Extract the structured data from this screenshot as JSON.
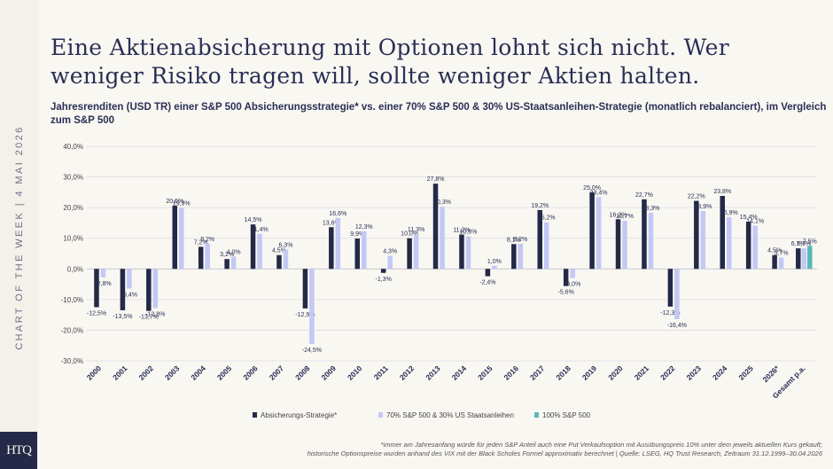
{
  "sidebar": {
    "label": "CHART OF THE WEEK | 4 MAI 2026",
    "logo_text": "HTQ"
  },
  "headline": "Eine Aktienabsicherung mit Optionen lohnt sich nicht. Wer weniger Risiko tragen will, sollte weniger Aktien halten.",
  "footnote": {
    "line1": "*immer am Jahresanfang würde für jeden S&P Anteil auch eine Put Verkaufsoption mit Ausübungspreis 10% unter dem jeweils aktuellen Kurs gekauft;",
    "line2": "historische Optionspreise wurden anhand des VIX mit der Black Scholes Formel approximativ berechnet | Quelle: LSEG, HQ Trust Research, Zeitraum 31.12.1999–30.04.2026"
  },
  "colors": {
    "hedge": "#232946",
    "mix": "#c3c8f5",
    "sp500": "#5ab8b7",
    "title": "#2a2f55"
  },
  "chart_data": {
    "type": "bar",
    "title": "Jahresrenditen (USD TR) einer S&P 500 Absicherungsstrategie* vs. einer 70% S&P 500 & 30% US-Staatsanleihen-Strategie (monatlich rebalanciert), im Vergleich zum S&P 500",
    "ylim": [
      -30,
      40
    ],
    "yticks": [
      "-30,0%",
      "-20,0%",
      "-10,0%",
      "0,0%",
      "10,0%",
      "20,0%",
      "30,0%",
      "40,0%"
    ],
    "ytick_values": [
      -30,
      -20,
      -10,
      0,
      10,
      20,
      30,
      40
    ],
    "grid": true,
    "legend_position": "bottom",
    "categories": [
      "2000",
      "2001",
      "2002",
      "2003",
      "2004",
      "2005",
      "2006",
      "2007",
      "2008",
      "2009",
      "2010",
      "2011",
      "2012",
      "2013",
      "2014",
      "2015",
      "2016",
      "2017",
      "2018",
      "2019",
      "2020",
      "2021",
      "2022",
      "2023",
      "2024",
      "2025",
      "2026*",
      "Gesamt p.a."
    ],
    "series": [
      {
        "name": "Absicherungs-Strategie*",
        "color": "#232946",
        "values": [
          -12.5,
          -13.5,
          -13.7,
          20.6,
          7.2,
          3.2,
          14.5,
          4.5,
          -12.9,
          13.6,
          9.9,
          -1.3,
          10.0,
          27.8,
          11.2,
          -2.4,
          8.1,
          19.2,
          -5.6,
          25.0,
          16.2,
          22.7,
          -12.3,
          22.2,
          23.8,
          15.4,
          4.5,
          6.7
        ],
        "labels": [
          "-12,5%",
          "-13,5%",
          "-13,7%",
          "20,6%",
          "7,2%",
          "3,2%",
          "14,5%",
          "4,5%",
          "-12,9%",
          "13,6%",
          "9,9%",
          "-1,3%",
          "10,0%",
          "27,8%",
          "11,2%",
          "-2,4%",
          "8,1%",
          "19,2%",
          "-5,6%",
          "25,0%",
          "16,2%",
          "22,7%",
          "-12,3%",
          "22,2%",
          "23,8%",
          "15,4%",
          "4,5%",
          "6,7%"
        ]
      },
      {
        "name": "70% S&P 500 & 30% US Staatsanleihen",
        "color": "#c3c8f5",
        "values": [
          -2.8,
          -6.4,
          -12.8,
          19.9,
          8.2,
          4.0,
          11.4,
          6.3,
          -24.5,
          16.6,
          12.3,
          4.3,
          11.3,
          20.3,
          10.6,
          1.0,
          8.2,
          15.2,
          -3.0,
          23.4,
          15.7,
          18.3,
          -16.4,
          18.9,
          16.9,
          14.1,
          3.7,
          6.7
        ],
        "labels": [
          "-2,8%",
          "-6,4%",
          "-12,8%",
          "19,9%",
          "8,2%",
          "4,0%",
          "11,4%",
          "6,3%",
          "-24,5%",
          "16,6%",
          "12,3%",
          "4,3%",
          "11,3%",
          "20,3%",
          "10,6%",
          "1,0%",
          "8,2%",
          "15,2%",
          "-3,0%",
          "23,4%",
          "15,7%",
          "18,3%",
          "-16,4%",
          "18,9%",
          "16,9%",
          "14,1%",
          "3,7%",
          "6,7%"
        ]
      },
      {
        "name": "100% S&P 500",
        "color": "#5ab8b7",
        "values": [
          null,
          null,
          null,
          null,
          null,
          null,
          null,
          null,
          null,
          null,
          null,
          null,
          null,
          null,
          null,
          null,
          null,
          null,
          null,
          null,
          null,
          null,
          null,
          null,
          null,
          null,
          null,
          7.5
        ],
        "labels": [
          "",
          "",
          "",
          "",
          "",
          "",
          "",
          "",
          "",
          "",
          "",
          "",
          "",
          "",
          "",
          "",
          "",
          "",
          "",
          "",
          "",
          "",
          "",
          "",
          "",
          "",
          "",
          "7,5%"
        ]
      }
    ]
  }
}
